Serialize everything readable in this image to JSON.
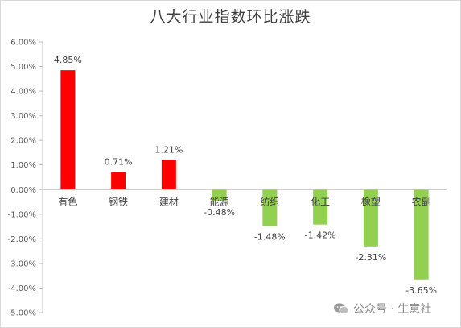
{
  "chart_data": {
    "type": "bar",
    "title": "八大行业指数环比涨跌",
    "categories": [
      "有色",
      "钢铁",
      "建材",
      "能源",
      "纺织",
      "化工",
      "橡塑",
      "农副"
    ],
    "values": [
      4.85,
      0.71,
      1.21,
      -0.48,
      -1.48,
      -1.42,
      -2.31,
      -3.65
    ],
    "data_labels": [
      "4.85%",
      "0.71%",
      "1.21%",
      "-0.48%",
      "-1.48%",
      "-1.42%",
      "-2.31%",
      "-3.65%"
    ],
    "y_ticks": [
      6,
      5,
      4,
      3,
      2,
      1,
      0,
      -1,
      -2,
      -3,
      -4,
      -5
    ],
    "y_tick_labels": [
      "6.00%",
      "5.00%",
      "4.00%",
      "3.00%",
      "2.00%",
      "1.00%",
      "0.00%",
      "-1.00%",
      "-2.00%",
      "-3.00%",
      "-4.00%",
      "-5.00%"
    ],
    "ylim": [
      -5,
      6
    ],
    "grid": false,
    "colors": {
      "positive": "#ff0000",
      "negative": "#92d050"
    }
  },
  "watermark": {
    "text": "公众号 · 生意社",
    "icon": "wechat-icon"
  }
}
